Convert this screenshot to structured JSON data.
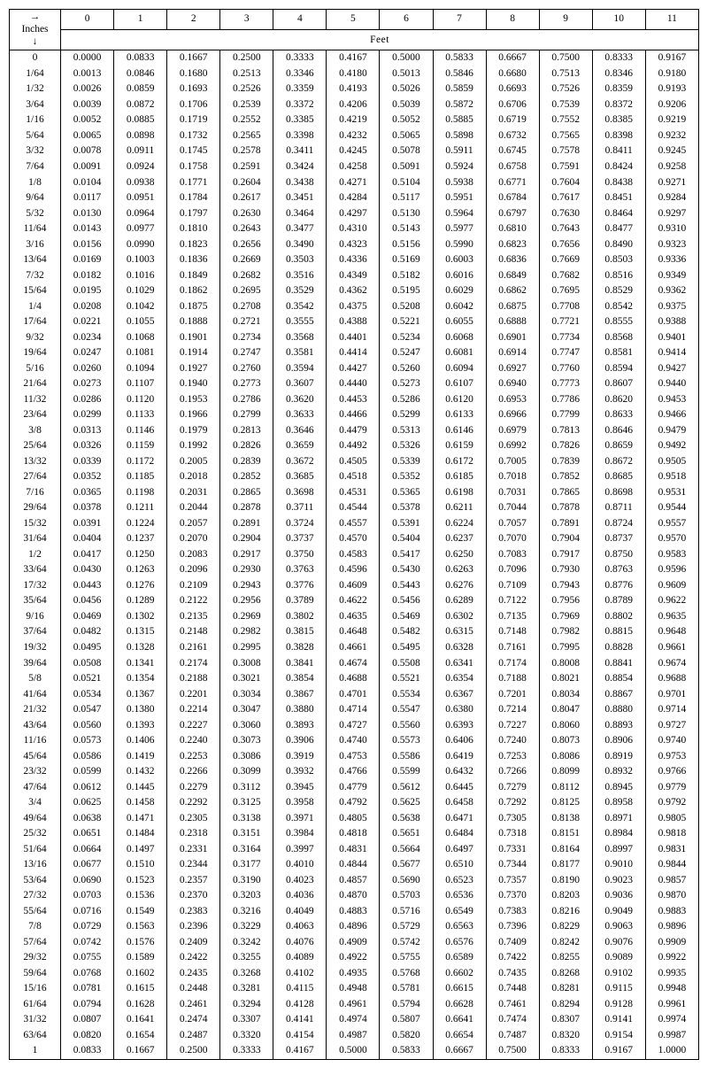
{
  "table": {
    "corner_top": "→",
    "corner_mid": "Inches",
    "corner_bot": "↓",
    "feet_label": "Feet",
    "col_headers": [
      "0",
      "1",
      "2",
      "3",
      "4",
      "5",
      "6",
      "7",
      "8",
      "9",
      "10",
      "11"
    ],
    "row_headers": [
      "0",
      "1/64",
      "1/32",
      "3/64",
      "1/16",
      "5/64",
      "3/32",
      "7/64",
      "1/8",
      "9/64",
      "5/32",
      "11/64",
      "3/16",
      "13/64",
      "7/32",
      "15/64",
      "1/4",
      "17/64",
      "9/32",
      "19/64",
      "5/16",
      "21/64",
      "11/32",
      "23/64",
      "3/8",
      "25/64",
      "13/32",
      "27/64",
      "7/16",
      "29/64",
      "15/32",
      "31/64",
      "1/2",
      "33/64",
      "17/32",
      "35/64",
      "9/16",
      "37/64",
      "19/32",
      "39/64",
      "5/8",
      "41/64",
      "21/32",
      "43/64",
      "11/16",
      "45/64",
      "23/32",
      "47/64",
      "3/4",
      "49/64",
      "25/32",
      "51/64",
      "13/16",
      "53/64",
      "27/32",
      "55/64",
      "7/8",
      "57/64",
      "29/32",
      "59/64",
      "15/16",
      "61/64",
      "31/32",
      "63/64",
      "1"
    ],
    "cells": [
      [
        "0.0000",
        "0.0833",
        "0.1667",
        "0.2500",
        "0.3333",
        "0.4167",
        "0.5000",
        "0.5833",
        "0.6667",
        "0.7500",
        "0.8333",
        "0.9167"
      ],
      [
        "0.0013",
        "0.0846",
        "0.1680",
        "0.2513",
        "0.3346",
        "0.4180",
        "0.5013",
        "0.5846",
        "0.6680",
        "0.7513",
        "0.8346",
        "0.9180"
      ],
      [
        "0.0026",
        "0.0859",
        "0.1693",
        "0.2526",
        "0.3359",
        "0.4193",
        "0.5026",
        "0.5859",
        "0.6693",
        "0.7526",
        "0.8359",
        "0.9193"
      ],
      [
        "0.0039",
        "0.0872",
        "0.1706",
        "0.2539",
        "0.3372",
        "0.4206",
        "0.5039",
        "0.5872",
        "0.6706",
        "0.7539",
        "0.8372",
        "0.9206"
      ],
      [
        "0.0052",
        "0.0885",
        "0.1719",
        "0.2552",
        "0.3385",
        "0.4219",
        "0.5052",
        "0.5885",
        "0.6719",
        "0.7552",
        "0.8385",
        "0.9219"
      ],
      [
        "0.0065",
        "0.0898",
        "0.1732",
        "0.2565",
        "0.3398",
        "0.4232",
        "0.5065",
        "0.5898",
        "0.6732",
        "0.7565",
        "0.8398",
        "0.9232"
      ],
      [
        "0.0078",
        "0.0911",
        "0.1745",
        "0.2578",
        "0.3411",
        "0.4245",
        "0.5078",
        "0.5911",
        "0.6745",
        "0.7578",
        "0.8411",
        "0.9245"
      ],
      [
        "0.0091",
        "0.0924",
        "0.1758",
        "0.2591",
        "0.3424",
        "0.4258",
        "0.5091",
        "0.5924",
        "0.6758",
        "0.7591",
        "0.8424",
        "0.9258"
      ],
      [
        "0.0104",
        "0.0938",
        "0.1771",
        "0.2604",
        "0.3438",
        "0.4271",
        "0.5104",
        "0.5938",
        "0.6771",
        "0.7604",
        "0.8438",
        "0.9271"
      ],
      [
        "0.0117",
        "0.0951",
        "0.1784",
        "0.2617",
        "0.3451",
        "0.4284",
        "0.5117",
        "0.5951",
        "0.6784",
        "0.7617",
        "0.8451",
        "0.9284"
      ],
      [
        "0.0130",
        "0.0964",
        "0.1797",
        "0.2630",
        "0.3464",
        "0.4297",
        "0.5130",
        "0.5964",
        "0.6797",
        "0.7630",
        "0.8464",
        "0.9297"
      ],
      [
        "0.0143",
        "0.0977",
        "0.1810",
        "0.2643",
        "0.3477",
        "0.4310",
        "0.5143",
        "0.5977",
        "0.6810",
        "0.7643",
        "0.8477",
        "0.9310"
      ],
      [
        "0.0156",
        "0.0990",
        "0.1823",
        "0.2656",
        "0.3490",
        "0.4323",
        "0.5156",
        "0.5990",
        "0.6823",
        "0.7656",
        "0.8490",
        "0.9323"
      ],
      [
        "0.0169",
        "0.1003",
        "0.1836",
        "0.2669",
        "0.3503",
        "0.4336",
        "0.5169",
        "0.6003",
        "0.6836",
        "0.7669",
        "0.8503",
        "0.9336"
      ],
      [
        "0.0182",
        "0.1016",
        "0.1849",
        "0.2682",
        "0.3516",
        "0.4349",
        "0.5182",
        "0.6016",
        "0.6849",
        "0.7682",
        "0.8516",
        "0.9349"
      ],
      [
        "0.0195",
        "0.1029",
        "0.1862",
        "0.2695",
        "0.3529",
        "0.4362",
        "0.5195",
        "0.6029",
        "0.6862",
        "0.7695",
        "0.8529",
        "0.9362"
      ],
      [
        "0.0208",
        "0.1042",
        "0.1875",
        "0.2708",
        "0.3542",
        "0.4375",
        "0.5208",
        "0.6042",
        "0.6875",
        "0.7708",
        "0.8542",
        "0.9375"
      ],
      [
        "0.0221",
        "0.1055",
        "0.1888",
        "0.2721",
        "0.3555",
        "0.4388",
        "0.5221",
        "0.6055",
        "0.6888",
        "0.7721",
        "0.8555",
        "0.9388"
      ],
      [
        "0.0234",
        "0.1068",
        "0.1901",
        "0.2734",
        "0.3568",
        "0.4401",
        "0.5234",
        "0.6068",
        "0.6901",
        "0.7734",
        "0.8568",
        "0.9401"
      ],
      [
        "0.0247",
        "0.1081",
        "0.1914",
        "0.2747",
        "0.3581",
        "0.4414",
        "0.5247",
        "0.6081",
        "0.6914",
        "0.7747",
        "0.8581",
        "0.9414"
      ],
      [
        "0.0260",
        "0.1094",
        "0.1927",
        "0.2760",
        "0.3594",
        "0.4427",
        "0.5260",
        "0.6094",
        "0.6927",
        "0.7760",
        "0.8594",
        "0.9427"
      ],
      [
        "0.0273",
        "0.1107",
        "0.1940",
        "0.2773",
        "0.3607",
        "0.4440",
        "0.5273",
        "0.6107",
        "0.6940",
        "0.7773",
        "0.8607",
        "0.9440"
      ],
      [
        "0.0286",
        "0.1120",
        "0.1953",
        "0.2786",
        "0.3620",
        "0.4453",
        "0.5286",
        "0.6120",
        "0.6953",
        "0.7786",
        "0.8620",
        "0.9453"
      ],
      [
        "0.0299",
        "0.1133",
        "0.1966",
        "0.2799",
        "0.3633",
        "0.4466",
        "0.5299",
        "0.6133",
        "0.6966",
        "0.7799",
        "0.8633",
        "0.9466"
      ],
      [
        "0.0313",
        "0.1146",
        "0.1979",
        "0.2813",
        "0.3646",
        "0.4479",
        "0.5313",
        "0.6146",
        "0.6979",
        "0.7813",
        "0.8646",
        "0.9479"
      ],
      [
        "0.0326",
        "0.1159",
        "0.1992",
        "0.2826",
        "0.3659",
        "0.4492",
        "0.5326",
        "0.6159",
        "0.6992",
        "0.7826",
        "0.8659",
        "0.9492"
      ],
      [
        "0.0339",
        "0.1172",
        "0.2005",
        "0.2839",
        "0.3672",
        "0.4505",
        "0.5339",
        "0.6172",
        "0.7005",
        "0.7839",
        "0.8672",
        "0.9505"
      ],
      [
        "0.0352",
        "0.1185",
        "0.2018",
        "0.2852",
        "0.3685",
        "0.4518",
        "0.5352",
        "0.6185",
        "0.7018",
        "0.7852",
        "0.8685",
        "0.9518"
      ],
      [
        "0.0365",
        "0.1198",
        "0.2031",
        "0.2865",
        "0.3698",
        "0.4531",
        "0.5365",
        "0.6198",
        "0.7031",
        "0.7865",
        "0.8698",
        "0.9531"
      ],
      [
        "0.0378",
        "0.1211",
        "0.2044",
        "0.2878",
        "0.3711",
        "0.4544",
        "0.5378",
        "0.6211",
        "0.7044",
        "0.7878",
        "0.8711",
        "0.9544"
      ],
      [
        "0.0391",
        "0.1224",
        "0.2057",
        "0.2891",
        "0.3724",
        "0.4557",
        "0.5391",
        "0.6224",
        "0.7057",
        "0.7891",
        "0.8724",
        "0.9557"
      ],
      [
        "0.0404",
        "0.1237",
        "0.2070",
        "0.2904",
        "0.3737",
        "0.4570",
        "0.5404",
        "0.6237",
        "0.7070",
        "0.7904",
        "0.8737",
        "0.9570"
      ],
      [
        "0.0417",
        "0.1250",
        "0.2083",
        "0.2917",
        "0.3750",
        "0.4583",
        "0.5417",
        "0.6250",
        "0.7083",
        "0.7917",
        "0.8750",
        "0.9583"
      ],
      [
        "0.0430",
        "0.1263",
        "0.2096",
        "0.2930",
        "0.3763",
        "0.4596",
        "0.5430",
        "0.6263",
        "0.7096",
        "0.7930",
        "0.8763",
        "0.9596"
      ],
      [
        "0.0443",
        "0.1276",
        "0.2109",
        "0.2943",
        "0.3776",
        "0.4609",
        "0.5443",
        "0.6276",
        "0.7109",
        "0.7943",
        "0.8776",
        "0.9609"
      ],
      [
        "0.0456",
        "0.1289",
        "0.2122",
        "0.2956",
        "0.3789",
        "0.4622",
        "0.5456",
        "0.6289",
        "0.7122",
        "0.7956",
        "0.8789",
        "0.9622"
      ],
      [
        "0.0469",
        "0.1302",
        "0.2135",
        "0.2969",
        "0.3802",
        "0.4635",
        "0.5469",
        "0.6302",
        "0.7135",
        "0.7969",
        "0.8802",
        "0.9635"
      ],
      [
        "0.0482",
        "0.1315",
        "0.2148",
        "0.2982",
        "0.3815",
        "0.4648",
        "0.5482",
        "0.6315",
        "0.7148",
        "0.7982",
        "0.8815",
        "0.9648"
      ],
      [
        "0.0495",
        "0.1328",
        "0.2161",
        "0.2995",
        "0.3828",
        "0.4661",
        "0.5495",
        "0.6328",
        "0.7161",
        "0.7995",
        "0.8828",
        "0.9661"
      ],
      [
        "0.0508",
        "0.1341",
        "0.2174",
        "0.3008",
        "0.3841",
        "0.4674",
        "0.5508",
        "0.6341",
        "0.7174",
        "0.8008",
        "0.8841",
        "0.9674"
      ],
      [
        "0.0521",
        "0.1354",
        "0.2188",
        "0.3021",
        "0.3854",
        "0.4688",
        "0.5521",
        "0.6354",
        "0.7188",
        "0.8021",
        "0.8854",
        "0.9688"
      ],
      [
        "0.0534",
        "0.1367",
        "0.2201",
        "0.3034",
        "0.3867",
        "0.4701",
        "0.5534",
        "0.6367",
        "0.7201",
        "0.8034",
        "0.8867",
        "0.9701"
      ],
      [
        "0.0547",
        "0.1380",
        "0.2214",
        "0.3047",
        "0.3880",
        "0.4714",
        "0.5547",
        "0.6380",
        "0.7214",
        "0.8047",
        "0.8880",
        "0.9714"
      ],
      [
        "0.0560",
        "0.1393",
        "0.2227",
        "0.3060",
        "0.3893",
        "0.4727",
        "0.5560",
        "0.6393",
        "0.7227",
        "0.8060",
        "0.8893",
        "0.9727"
      ],
      [
        "0.0573",
        "0.1406",
        "0.2240",
        "0.3073",
        "0.3906",
        "0.4740",
        "0.5573",
        "0.6406",
        "0.7240",
        "0.8073",
        "0.8906",
        "0.9740"
      ],
      [
        "0.0586",
        "0.1419",
        "0.2253",
        "0.3086",
        "0.3919",
        "0.4753",
        "0.5586",
        "0.6419",
        "0.7253",
        "0.8086",
        "0.8919",
        "0.9753"
      ],
      [
        "0.0599",
        "0.1432",
        "0.2266",
        "0.3099",
        "0.3932",
        "0.4766",
        "0.5599",
        "0.6432",
        "0.7266",
        "0.8099",
        "0.8932",
        "0.9766"
      ],
      [
        "0.0612",
        "0.1445",
        "0.2279",
        "0.3112",
        "0.3945",
        "0.4779",
        "0.5612",
        "0.6445",
        "0.7279",
        "0.8112",
        "0.8945",
        "0.9779"
      ],
      [
        "0.0625",
        "0.1458",
        "0.2292",
        "0.3125",
        "0.3958",
        "0.4792",
        "0.5625",
        "0.6458",
        "0.7292",
        "0.8125",
        "0.8958",
        "0.9792"
      ],
      [
        "0.0638",
        "0.1471",
        "0.2305",
        "0.3138",
        "0.3971",
        "0.4805",
        "0.5638",
        "0.6471",
        "0.7305",
        "0.8138",
        "0.8971",
        "0.9805"
      ],
      [
        "0.0651",
        "0.1484",
        "0.2318",
        "0.3151",
        "0.3984",
        "0.4818",
        "0.5651",
        "0.6484",
        "0.7318",
        "0.8151",
        "0.8984",
        "0.9818"
      ],
      [
        "0.0664",
        "0.1497",
        "0.2331",
        "0.3164",
        "0.3997",
        "0.4831",
        "0.5664",
        "0.6497",
        "0.7331",
        "0.8164",
        "0.8997",
        "0.9831"
      ],
      [
        "0.0677",
        "0.1510",
        "0.2344",
        "0.3177",
        "0.4010",
        "0.4844",
        "0.5677",
        "0.6510",
        "0.7344",
        "0.8177",
        "0.9010",
        "0.9844"
      ],
      [
        "0.0690",
        "0.1523",
        "0.2357",
        "0.3190",
        "0.4023",
        "0.4857",
        "0.5690",
        "0.6523",
        "0.7357",
        "0.8190",
        "0.9023",
        "0.9857"
      ],
      [
        "0.0703",
        "0.1536",
        "0.2370",
        "0.3203",
        "0.4036",
        "0.4870",
        "0.5703",
        "0.6536",
        "0.7370",
        "0.8203",
        "0.9036",
        "0.9870"
      ],
      [
        "0.0716",
        "0.1549",
        "0.2383",
        "0.3216",
        "0.4049",
        "0.4883",
        "0.5716",
        "0.6549",
        "0.7383",
        "0.8216",
        "0.9049",
        "0.9883"
      ],
      [
        "0.0729",
        "0.1563",
        "0.2396",
        "0.3229",
        "0.4063",
        "0.4896",
        "0.5729",
        "0.6563",
        "0.7396",
        "0.8229",
        "0.9063",
        "0.9896"
      ],
      [
        "0.0742",
        "0.1576",
        "0.2409",
        "0.3242",
        "0.4076",
        "0.4909",
        "0.5742",
        "0.6576",
        "0.7409",
        "0.8242",
        "0.9076",
        "0.9909"
      ],
      [
        "0.0755",
        "0.1589",
        "0.2422",
        "0.3255",
        "0.4089",
        "0.4922",
        "0.5755",
        "0.6589",
        "0.7422",
        "0.8255",
        "0.9089",
        "0.9922"
      ],
      [
        "0.0768",
        "0.1602",
        "0.2435",
        "0.3268",
        "0.4102",
        "0.4935",
        "0.5768",
        "0.6602",
        "0.7435",
        "0.8268",
        "0.9102",
        "0.9935"
      ],
      [
        "0.0781",
        "0.1615",
        "0.2448",
        "0.3281",
        "0.4115",
        "0.4948",
        "0.5781",
        "0.6615",
        "0.7448",
        "0.8281",
        "0.9115",
        "0.9948"
      ],
      [
        "0.0794",
        "0.1628",
        "0.2461",
        "0.3294",
        "0.4128",
        "0.4961",
        "0.5794",
        "0.6628",
        "0.7461",
        "0.8294",
        "0.9128",
        "0.9961"
      ],
      [
        "0.0807",
        "0.1641",
        "0.2474",
        "0.3307",
        "0.4141",
        "0.4974",
        "0.5807",
        "0.6641",
        "0.7474",
        "0.8307",
        "0.9141",
        "0.9974"
      ],
      [
        "0.0820",
        "0.1654",
        "0.2487",
        "0.3320",
        "0.4154",
        "0.4987",
        "0.5820",
        "0.6654",
        "0.7487",
        "0.8320",
        "0.9154",
        "0.9987"
      ],
      [
        "0.0833",
        "0.1667",
        "0.2500",
        "0.3333",
        "0.4167",
        "0.5000",
        "0.5833",
        "0.6667",
        "0.7500",
        "0.8333",
        "0.9167",
        "1.0000"
      ]
    ]
  }
}
